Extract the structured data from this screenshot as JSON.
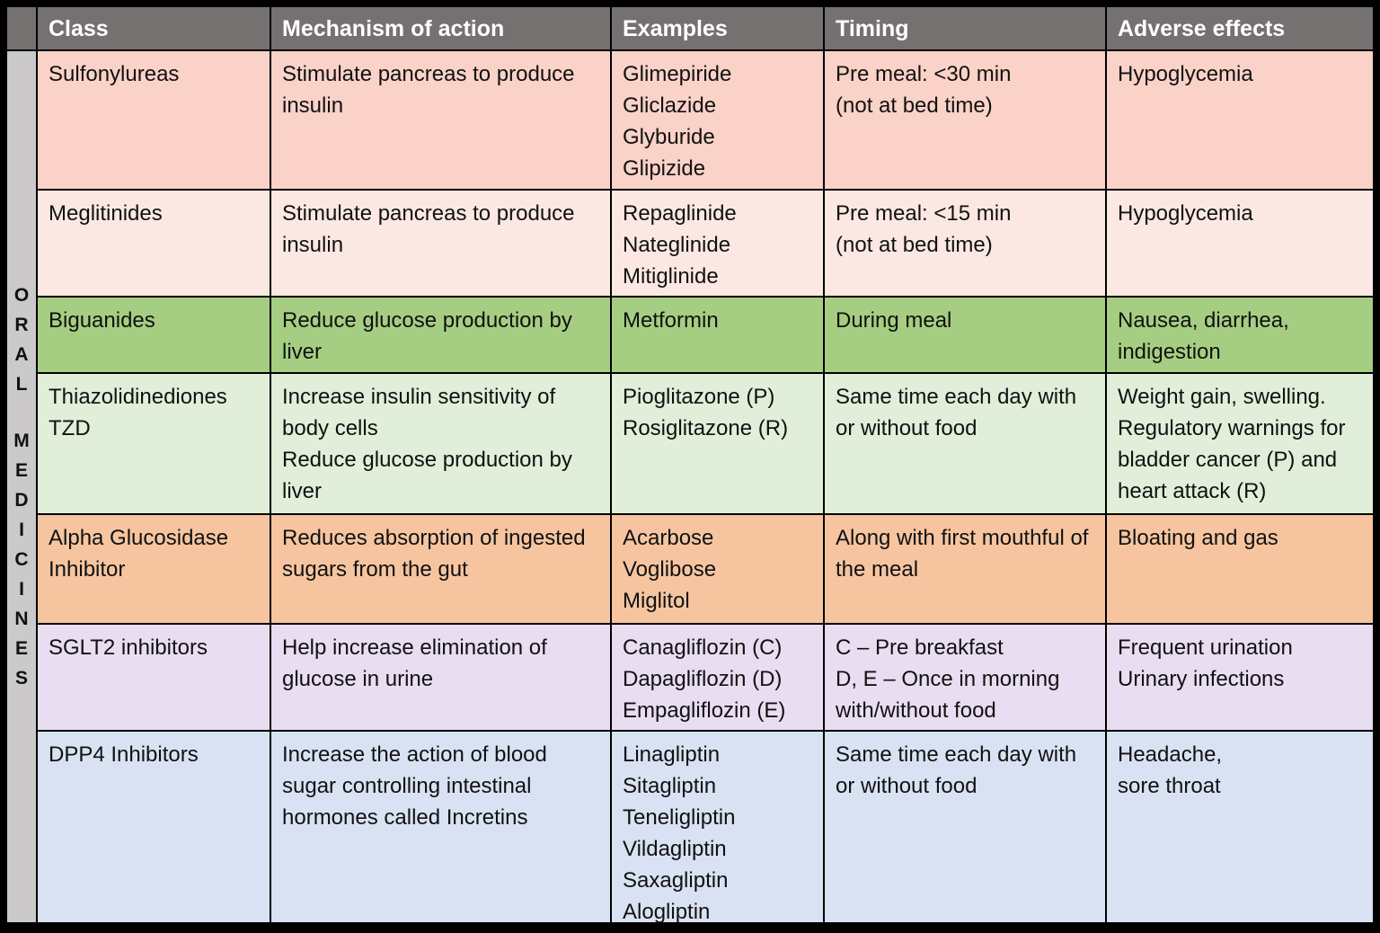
{
  "header": {
    "columns": {
      "class": "Class",
      "mechanism": "Mechanism  of action",
      "examples": "Examples",
      "timing": "Timing",
      "adverse": "Adverse effects"
    }
  },
  "side_label": {
    "text": "ORAL MEDICINES",
    "group1": "O\nR\nA\nL",
    "group2": "M\nE\nD\nI\nC\nI\nN\nE\nS"
  },
  "rows": [
    {
      "class": "Sulfonylureas",
      "mechanism": "Stimulate pancreas to produce insulin",
      "examples": "Glimepiride\nGliclazide\nGlyburide\nGlipizide",
      "timing": "Pre meal: <30 min\n(not at bed time)",
      "adverse": "Hypoglycemia",
      "color": "#fad2c7"
    },
    {
      "class": "Meglitinides",
      "mechanism": "Stimulate pancreas to produce insulin",
      "examples": "Repaglinide\nNateglinide\nMitiglinide",
      "timing": "Pre meal: <15 min\n(not at bed time)",
      "adverse": "Hypoglycemia",
      "color": "#fce8e2"
    },
    {
      "class": "Biguanides",
      "mechanism": "Reduce glucose production by liver",
      "examples": "Metformin",
      "timing": "During meal",
      "adverse": "Nausea, diarrhea,\nindigestion",
      "color": "#a6ce82"
    },
    {
      "class": "Thiazolidinediones TZD",
      "mechanism": "Increase insulin sensitivity of body cells\nReduce glucose production by liver",
      "examples": "Pioglitazone (P)\nRosiglitazone (R)",
      "timing": "Same time each day with or without food",
      "adverse": "Weight gain, swelling. Regulatory warnings for bladder cancer (P) and heart attack (R)",
      "color": "#e1eed9"
    },
    {
      "class": "Alpha Glucosidase Inhibitor",
      "mechanism": "Reduces absorption of ingested sugars from the gut",
      "examples": "Acarbose\nVoglibose\nMiglitol",
      "timing": "Along with first mouthful of the meal",
      "adverse": "Bloating and gas",
      "color": "#f6c5a0"
    },
    {
      "class": "SGLT2 inhibitors",
      "mechanism": "Help increase elimination of glucose in urine",
      "examples": "Canagliflozin (C)\nDapagliflozin (D)\nEmpagliflozin (E)",
      "timing": "C – Pre breakfast\nD, E – Once in morning with/without food",
      "adverse": "Frequent urination\nUrinary infections",
      "color": "#e9ddf1"
    },
    {
      "class": "DPP4 Inhibitors",
      "mechanism": "Increase the action of blood sugar controlling intestinal hormones called Incretins",
      "examples": "Linagliptin\nSitagliptin\nTeneligliptin\nVildagliptin\nSaxagliptin\nAlogliptin",
      "timing": "Same time each day with or without food",
      "adverse": "Headache,\nsore throat",
      "color": "#d9e2f3"
    }
  ],
  "colors": {
    "outer_border": "#000000",
    "header_bg": "#757171",
    "header_text": "#ffffff",
    "side_bg": "#cbc9c9",
    "body_text": "#111111"
  }
}
